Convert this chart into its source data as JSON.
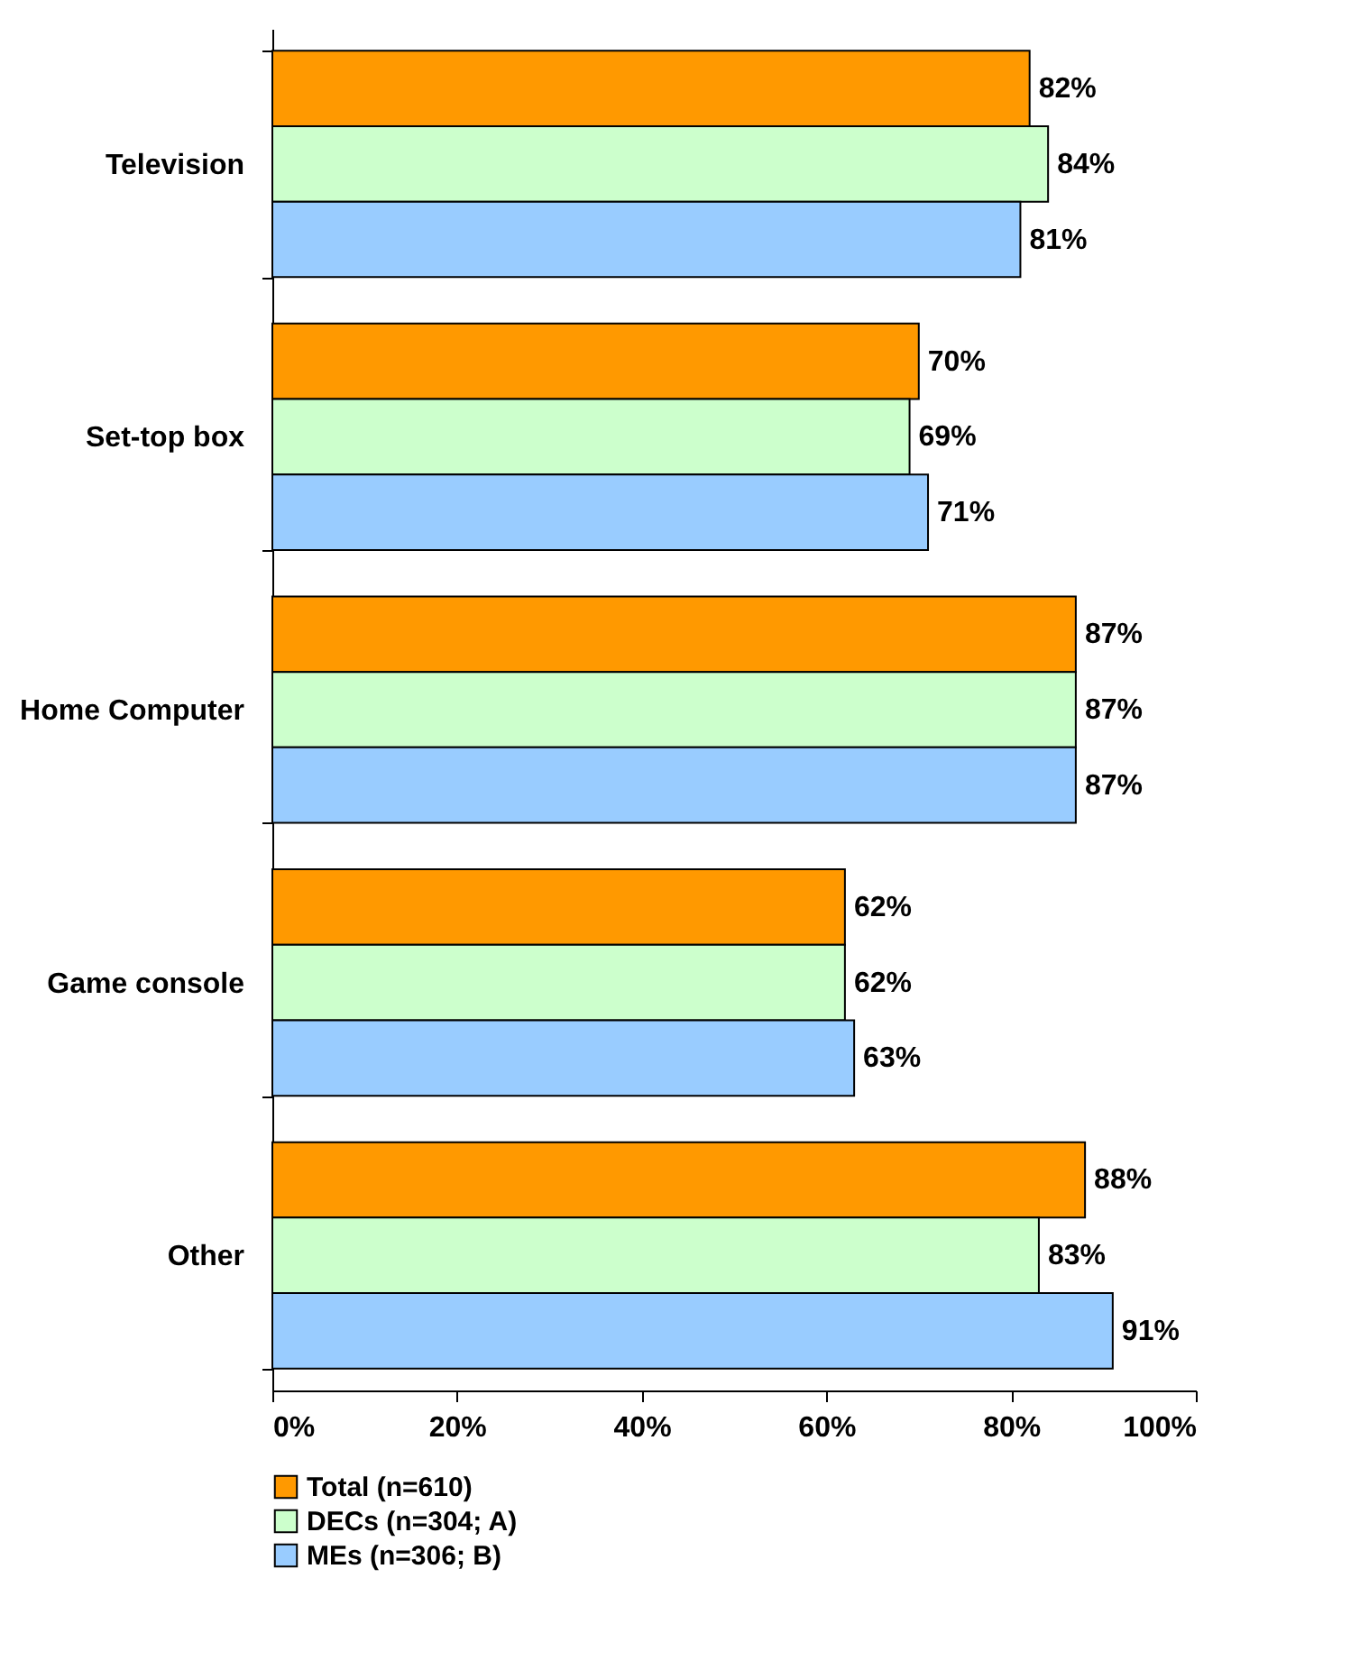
{
  "chart_data": {
    "type": "bar",
    "orientation": "horizontal",
    "categories": [
      "Television",
      "Set-top box",
      "Home Computer",
      "Game console",
      "Other"
    ],
    "series": [
      {
        "name": "Total (n=610)",
        "color": "#ff9900",
        "values": [
          82,
          70,
          87,
          62,
          88
        ],
        "value_labels": [
          "82%",
          "70%",
          "87%",
          "62%",
          "88%"
        ]
      },
      {
        "name": "DECs (n=304; A)",
        "color": "#ccffcc",
        "values": [
          84,
          69,
          87,
          62,
          83
        ],
        "value_labels": [
          "84%",
          "69%",
          "87%",
          "62%",
          "83%"
        ]
      },
      {
        "name": "MEs (n=306; B)",
        "color": "#99ccff",
        "values": [
          81,
          71,
          87,
          63,
          91
        ],
        "value_labels": [
          "81%",
          "71%",
          "87%",
          "63%",
          "91%"
        ]
      }
    ],
    "xlim": [
      0,
      100
    ],
    "xticks": [
      {
        "value": 0,
        "label": "0%"
      },
      {
        "value": 20,
        "label": "20%"
      },
      {
        "value": 40,
        "label": "40%"
      },
      {
        "value": 60,
        "label": "60%"
      },
      {
        "value": 80,
        "label": "80%"
      },
      {
        "value": 100,
        "label": "100%"
      }
    ],
    "grid": false,
    "legend": "bottom"
  }
}
